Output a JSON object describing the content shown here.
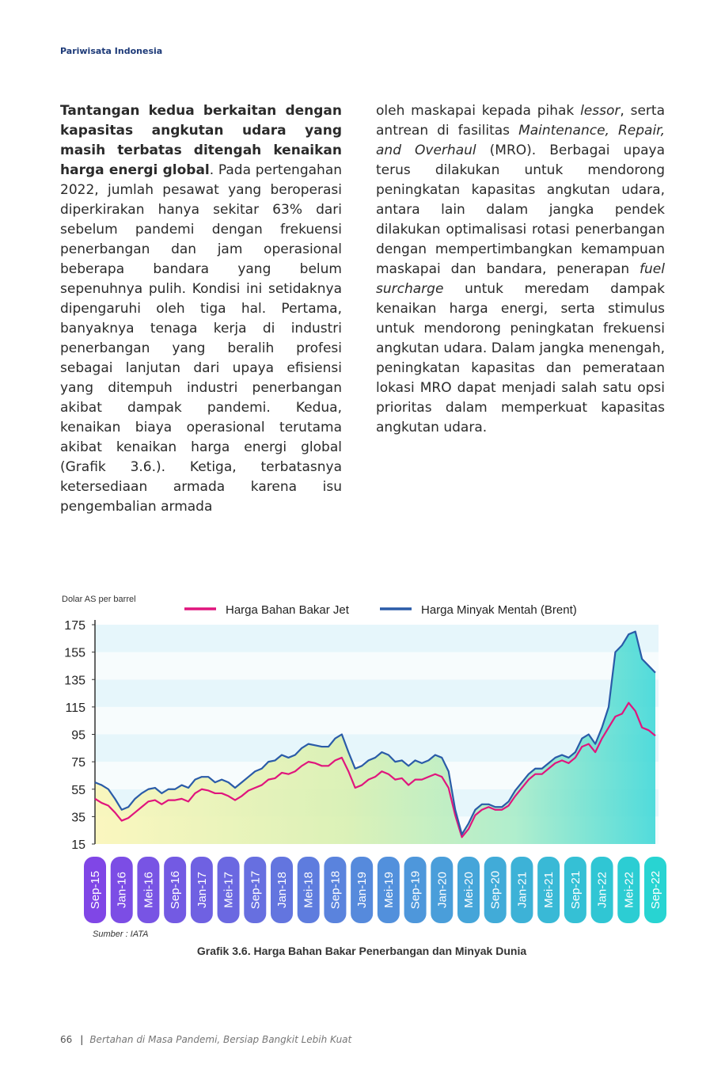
{
  "header": {
    "title": "Pariwisata Indonesia"
  },
  "body": {
    "left": [
      {
        "text": "Tantangan kedua berkaitan dengan kapasitas angkutan udara yang masih terbatas ditengah kenaikan harga energi global",
        "bold": true
      },
      {
        "text": ". Pada pertengahan 2022, jumlah pesawat yang beroperasi diperkirakan hanya sekitar 63% dari sebelum pandemi dengan frekuensi penerbangan dan jam operasional beberapa bandara yang belum sepenuhnya pulih. Kondisi ini setidaknya dipengaruhi oleh tiga hal. Pertama, banyaknya tenaga kerja di industri penerbangan yang beralih profesi sebagai lanjutan dari upaya efisiensi yang ditempuh industri penerbangan akibat dampak pandemi. Kedua, kenaikan biaya operasional terutama akibat kenaikan harga energi global (Grafik 3.6.). Ketiga, terbatasnya ketersediaan armada karena isu pengembalian armada"
      }
    ],
    "right": [
      {
        "text": "oleh maskapai kepada pihak "
      },
      {
        "text": "lessor",
        "italic": true
      },
      {
        "text": ", serta antrean di fasilitas "
      },
      {
        "text": "Maintenance, Repair, and Overhaul",
        "italic": true
      },
      {
        "text": " (MRO). Berbagai upaya terus dilakukan untuk mendorong peningkatan kapasitas angkutan udara, antara lain dalam jangka pendek dilakukan optimalisasi rotasi penerbangan dengan mempertimbangkan kemampuan maskapai dan bandara, penerapan "
      },
      {
        "text": "fuel surcharge",
        "italic": true
      },
      {
        "text": " untuk meredam dampak kenaikan harga energi, serta stimulus untuk mendorong peningkatan frekuensi angkutan udara. Dalam jangka menengah, peningkatan kapasitas dan pemerataan lokasi MRO dapat menjadi salah satu opsi prioritas dalam memperkuat kapasitas angkutan udara."
      }
    ]
  },
  "chart_data": {
    "type": "line",
    "y_label": "Dolar AS per barrel",
    "categories": [
      "Sep-15",
      null,
      null,
      null,
      "Jan-16",
      null,
      null,
      null,
      "Mei-16",
      null,
      null,
      null,
      "Sep-16",
      null,
      null,
      null,
      "Jan-17",
      null,
      null,
      null,
      "Mei-17",
      null,
      null,
      null,
      "Sep-17",
      null,
      null,
      null,
      "Jan-18",
      null,
      null,
      null,
      "Mei-18",
      null,
      null,
      null,
      "Sep-18",
      null,
      null,
      null,
      "Jan-19",
      null,
      null,
      null,
      "Mei-19",
      null,
      null,
      null,
      "Sep-19",
      null,
      null,
      null,
      "Jan-20",
      null,
      null,
      null,
      "Mei-20",
      null,
      null,
      null,
      "Sep-20",
      null,
      null,
      null,
      "Jan-21",
      null,
      null,
      null,
      "Mei-21",
      null,
      null,
      null,
      "Sep-21",
      null,
      null,
      null,
      "Jan-22",
      null,
      null,
      null,
      "Mei-22",
      null,
      null,
      null,
      "Sep-22"
    ],
    "series": [
      {
        "name": "Harga Bahan Bakar Jet",
        "color": "#e0157d",
        "values": [
          48,
          45,
          43,
          38,
          32,
          34,
          38,
          42,
          46,
          47,
          44,
          47,
          47,
          48,
          46,
          52,
          55,
          54,
          52,
          52,
          50,
          47,
          50,
          54,
          56,
          58,
          62,
          63,
          67,
          66,
          68,
          72,
          75,
          74,
          72,
          72,
          76,
          78,
          68,
          56,
          58,
          62,
          64,
          68,
          66,
          62,
          63,
          58,
          62,
          62,
          64,
          66,
          64,
          56,
          36,
          20,
          26,
          36,
          40,
          42,
          40,
          40,
          43,
          50,
          56,
          62,
          66,
          66,
          70,
          74,
          76,
          74,
          78,
          86,
          88,
          82,
          92,
          100,
          108,
          110,
          118,
          112,
          100,
          98,
          94
        ]
      },
      {
        "name": "Harga Minyak Mentah (Brent)",
        "color": "#2a5ba8",
        "values": [
          60,
          58,
          55,
          48,
          40,
          42,
          48,
          52,
          55,
          56,
          52,
          55,
          55,
          58,
          56,
          62,
          64,
          64,
          60,
          62,
          60,
          56,
          60,
          64,
          68,
          70,
          75,
          76,
          80,
          78,
          80,
          85,
          88,
          87,
          86,
          86,
          92,
          95,
          82,
          70,
          72,
          76,
          78,
          82,
          80,
          75,
          76,
          72,
          76,
          74,
          76,
          80,
          78,
          68,
          40,
          22,
          30,
          40,
          44,
          44,
          42,
          42,
          46,
          54,
          60,
          66,
          70,
          70,
          74,
          78,
          80,
          78,
          82,
          92,
          95,
          88,
          100,
          115,
          155,
          160,
          168,
          170,
          150,
          145,
          140
        ]
      }
    ],
    "ylim": [
      15,
      175
    ],
    "yticks": [
      15,
      35,
      55,
      75,
      95,
      115,
      135,
      155,
      175
    ],
    "source": "Sumber : IATA",
    "caption": "Grafik 3.6. Harga Bahan Bakar Penerbangan dan Minyak Dunia"
  },
  "footer": {
    "page": "66",
    "text": "Bertahan di Masa Pandemi, Bersiap Bangkit Lebih Kuat"
  }
}
